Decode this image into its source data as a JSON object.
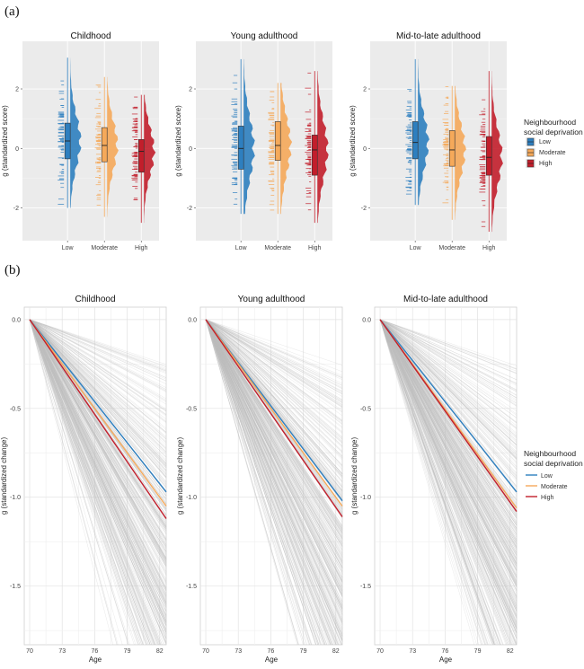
{
  "panels": {
    "a_label": "(a)",
    "b_label": "(b)"
  },
  "legend": {
    "title_line1": "Neighbourhood",
    "title_line2": "social deprivation",
    "items": [
      {
        "label": "Low",
        "color": "#2e7fbf"
      },
      {
        "label": "Moderate",
        "color": "#f5a95a"
      },
      {
        "label": "High",
        "color": "#c21e2b"
      }
    ]
  },
  "chart_data": [
    {
      "type": "violin",
      "panel": "(a)",
      "facets": [
        "Childhood",
        "Young adulthood",
        "Mid-to-late adulthood"
      ],
      "categories": [
        "Low",
        "Moderate",
        "High"
      ],
      "ylabel": "g (standardized score)",
      "yticks": [
        -2,
        0,
        2
      ],
      "ylim": [
        -3.1,
        3.6
      ],
      "grid": true,
      "legend_position": "right",
      "series": [
        {
          "facet": "Childhood",
          "boxes": [
            {
              "category": "Low",
              "q1": -0.35,
              "median": 0.25,
              "q3": 0.85,
              "min": -2.0,
              "max": 3.05
            },
            {
              "category": "Moderate",
              "q1": -0.45,
              "median": 0.1,
              "q3": 0.7,
              "min": -2.3,
              "max": 2.4
            },
            {
              "category": "High",
              "q1": -0.8,
              "median": -0.1,
              "q3": 0.3,
              "min": -2.5,
              "max": 1.8
            }
          ]
        },
        {
          "facet": "Young adulthood",
          "boxes": [
            {
              "category": "Low",
              "q1": -0.7,
              "median": 0.0,
              "q3": 0.75,
              "min": -2.2,
              "max": 3.0
            },
            {
              "category": "Moderate",
              "q1": -0.4,
              "median": 0.1,
              "q3": 0.9,
              "min": -2.2,
              "max": 2.2
            },
            {
              "category": "High",
              "q1": -0.9,
              "median": -0.05,
              "q3": 0.45,
              "min": -2.5,
              "max": 2.6
            }
          ]
        },
        {
          "facet": "Mid-to-late adulthood",
          "boxes": [
            {
              "category": "Low",
              "q1": -0.35,
              "median": 0.2,
              "q3": 0.9,
              "min": -1.9,
              "max": 3.0
            },
            {
              "category": "Moderate",
              "q1": -0.6,
              "median": -0.05,
              "q3": 0.6,
              "min": -2.4,
              "max": 2.1
            },
            {
              "category": "High",
              "q1": -0.9,
              "median": -0.3,
              "q3": 0.4,
              "min": -2.8,
              "max": 2.6
            }
          ]
        }
      ]
    },
    {
      "type": "line",
      "panel": "(b)",
      "facets": [
        "Childhood",
        "Young adulthood",
        "Mid-to-late adulthood"
      ],
      "xlabel": "Age",
      "ylabel": "g (standardized change)",
      "xticks": [
        70,
        73,
        76,
        79,
        82
      ],
      "yticks": [
        0.0,
        -0.5,
        -1.0,
        -1.5
      ],
      "xlim": [
        69.5,
        82.6
      ],
      "ylim": [
        -1.83,
        0.07
      ],
      "grid": true,
      "legend_position": "right",
      "series": [
        {
          "facet": "Childhood",
          "lines": [
            {
              "name": "Low",
              "x": [
                70,
                82.6
              ],
              "y": [
                0,
                -0.97
              ]
            },
            {
              "name": "Moderate",
              "x": [
                70,
                82.6
              ],
              "y": [
                0,
                -1.05
              ]
            },
            {
              "name": "High",
              "x": [
                70,
                82.6
              ],
              "y": [
                0,
                -1.12
              ]
            }
          ]
        },
        {
          "facet": "Young adulthood",
          "lines": [
            {
              "name": "Low",
              "x": [
                70,
                82.6
              ],
              "y": [
                0,
                -1.02
              ]
            },
            {
              "name": "Moderate",
              "x": [
                70,
                82.6
              ],
              "y": [
                0,
                -1.05
              ]
            },
            {
              "name": "High",
              "x": [
                70,
                82.6
              ],
              "y": [
                0,
                -1.11
              ]
            }
          ]
        },
        {
          "facet": "Mid-to-late adulthood",
          "lines": [
            {
              "name": "Low",
              "x": [
                70,
                82.6
              ],
              "y": [
                0,
                -0.97
              ]
            },
            {
              "name": "Moderate",
              "x": [
                70,
                82.6
              ],
              "y": [
                0,
                -1.06
              ]
            },
            {
              "name": "High",
              "x": [
                70,
                82.6
              ],
              "y": [
                0,
                -1.08
              ]
            }
          ]
        }
      ]
    }
  ]
}
